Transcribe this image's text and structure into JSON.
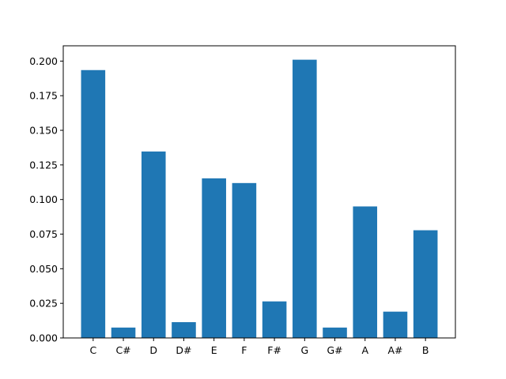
{
  "chart_data": {
    "type": "bar",
    "title": "",
    "xlabel": "",
    "ylabel": "",
    "categories": [
      "C",
      "C#",
      "D",
      "D#",
      "E",
      "F",
      "F#",
      "G",
      "G#",
      "A",
      "A#",
      "B"
    ],
    "values": [
      0.1935,
      0.0075,
      0.1347,
      0.0114,
      0.1153,
      0.1119,
      0.0264,
      0.201,
      0.0075,
      0.095,
      0.019,
      0.0778
    ],
    "ylim": [
      0,
      0.2
    ],
    "yticks": [
      "0.000",
      "0.025",
      "0.050",
      "0.075",
      "0.100",
      "0.125",
      "0.150",
      "0.175",
      "0.200"
    ],
    "bar_color": "#1f77b4",
    "grid": false,
    "legend": "none"
  }
}
